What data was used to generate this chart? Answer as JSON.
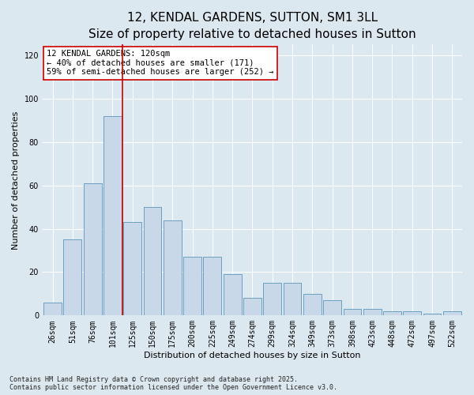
{
  "title1": "12, KENDAL GARDENS, SUTTON, SM1 3LL",
  "title2": "Size of property relative to detached houses in Sutton",
  "xlabel": "Distribution of detached houses by size in Sutton",
  "ylabel": "Number of detached properties",
  "categories": [
    "26sqm",
    "51sqm",
    "76sqm",
    "101sqm",
    "125sqm",
    "150sqm",
    "175sqm",
    "200sqm",
    "225sqm",
    "249sqm",
    "274sqm",
    "299sqm",
    "324sqm",
    "349sqm",
    "373sqm",
    "398sqm",
    "423sqm",
    "448sqm",
    "472sqm",
    "497sqm",
    "522sqm"
  ],
  "values": [
    6,
    35,
    61,
    92,
    43,
    50,
    44,
    27,
    27,
    19,
    8,
    15,
    15,
    10,
    7,
    3,
    3,
    2,
    2,
    1,
    2
  ],
  "bar_color": "#c8d8e8",
  "bar_edge_color": "#5b96bb",
  "vline_color": "#cc0000",
  "vline_x": 3.5,
  "annotation_text": "12 KENDAL GARDENS: 120sqm\n← 40% of detached houses are smaller (171)\n59% of semi-detached houses are larger (252) →",
  "annotation_box_facecolor": "#ffffff",
  "annotation_box_edgecolor": "#cc0000",
  "ylim": [
    0,
    125
  ],
  "yticks": [
    0,
    20,
    40,
    60,
    80,
    100,
    120
  ],
  "bg_color": "#dce8f0",
  "grid_color": "#ffffff",
  "footer": "Contains HM Land Registry data © Crown copyright and database right 2025.\nContains public sector information licensed under the Open Government Licence v3.0.",
  "title1_fontsize": 11,
  "title2_fontsize": 9.5,
  "axis_label_fontsize": 8,
  "tick_fontsize": 7,
  "annotation_fontsize": 7.5,
  "footer_fontsize": 6
}
